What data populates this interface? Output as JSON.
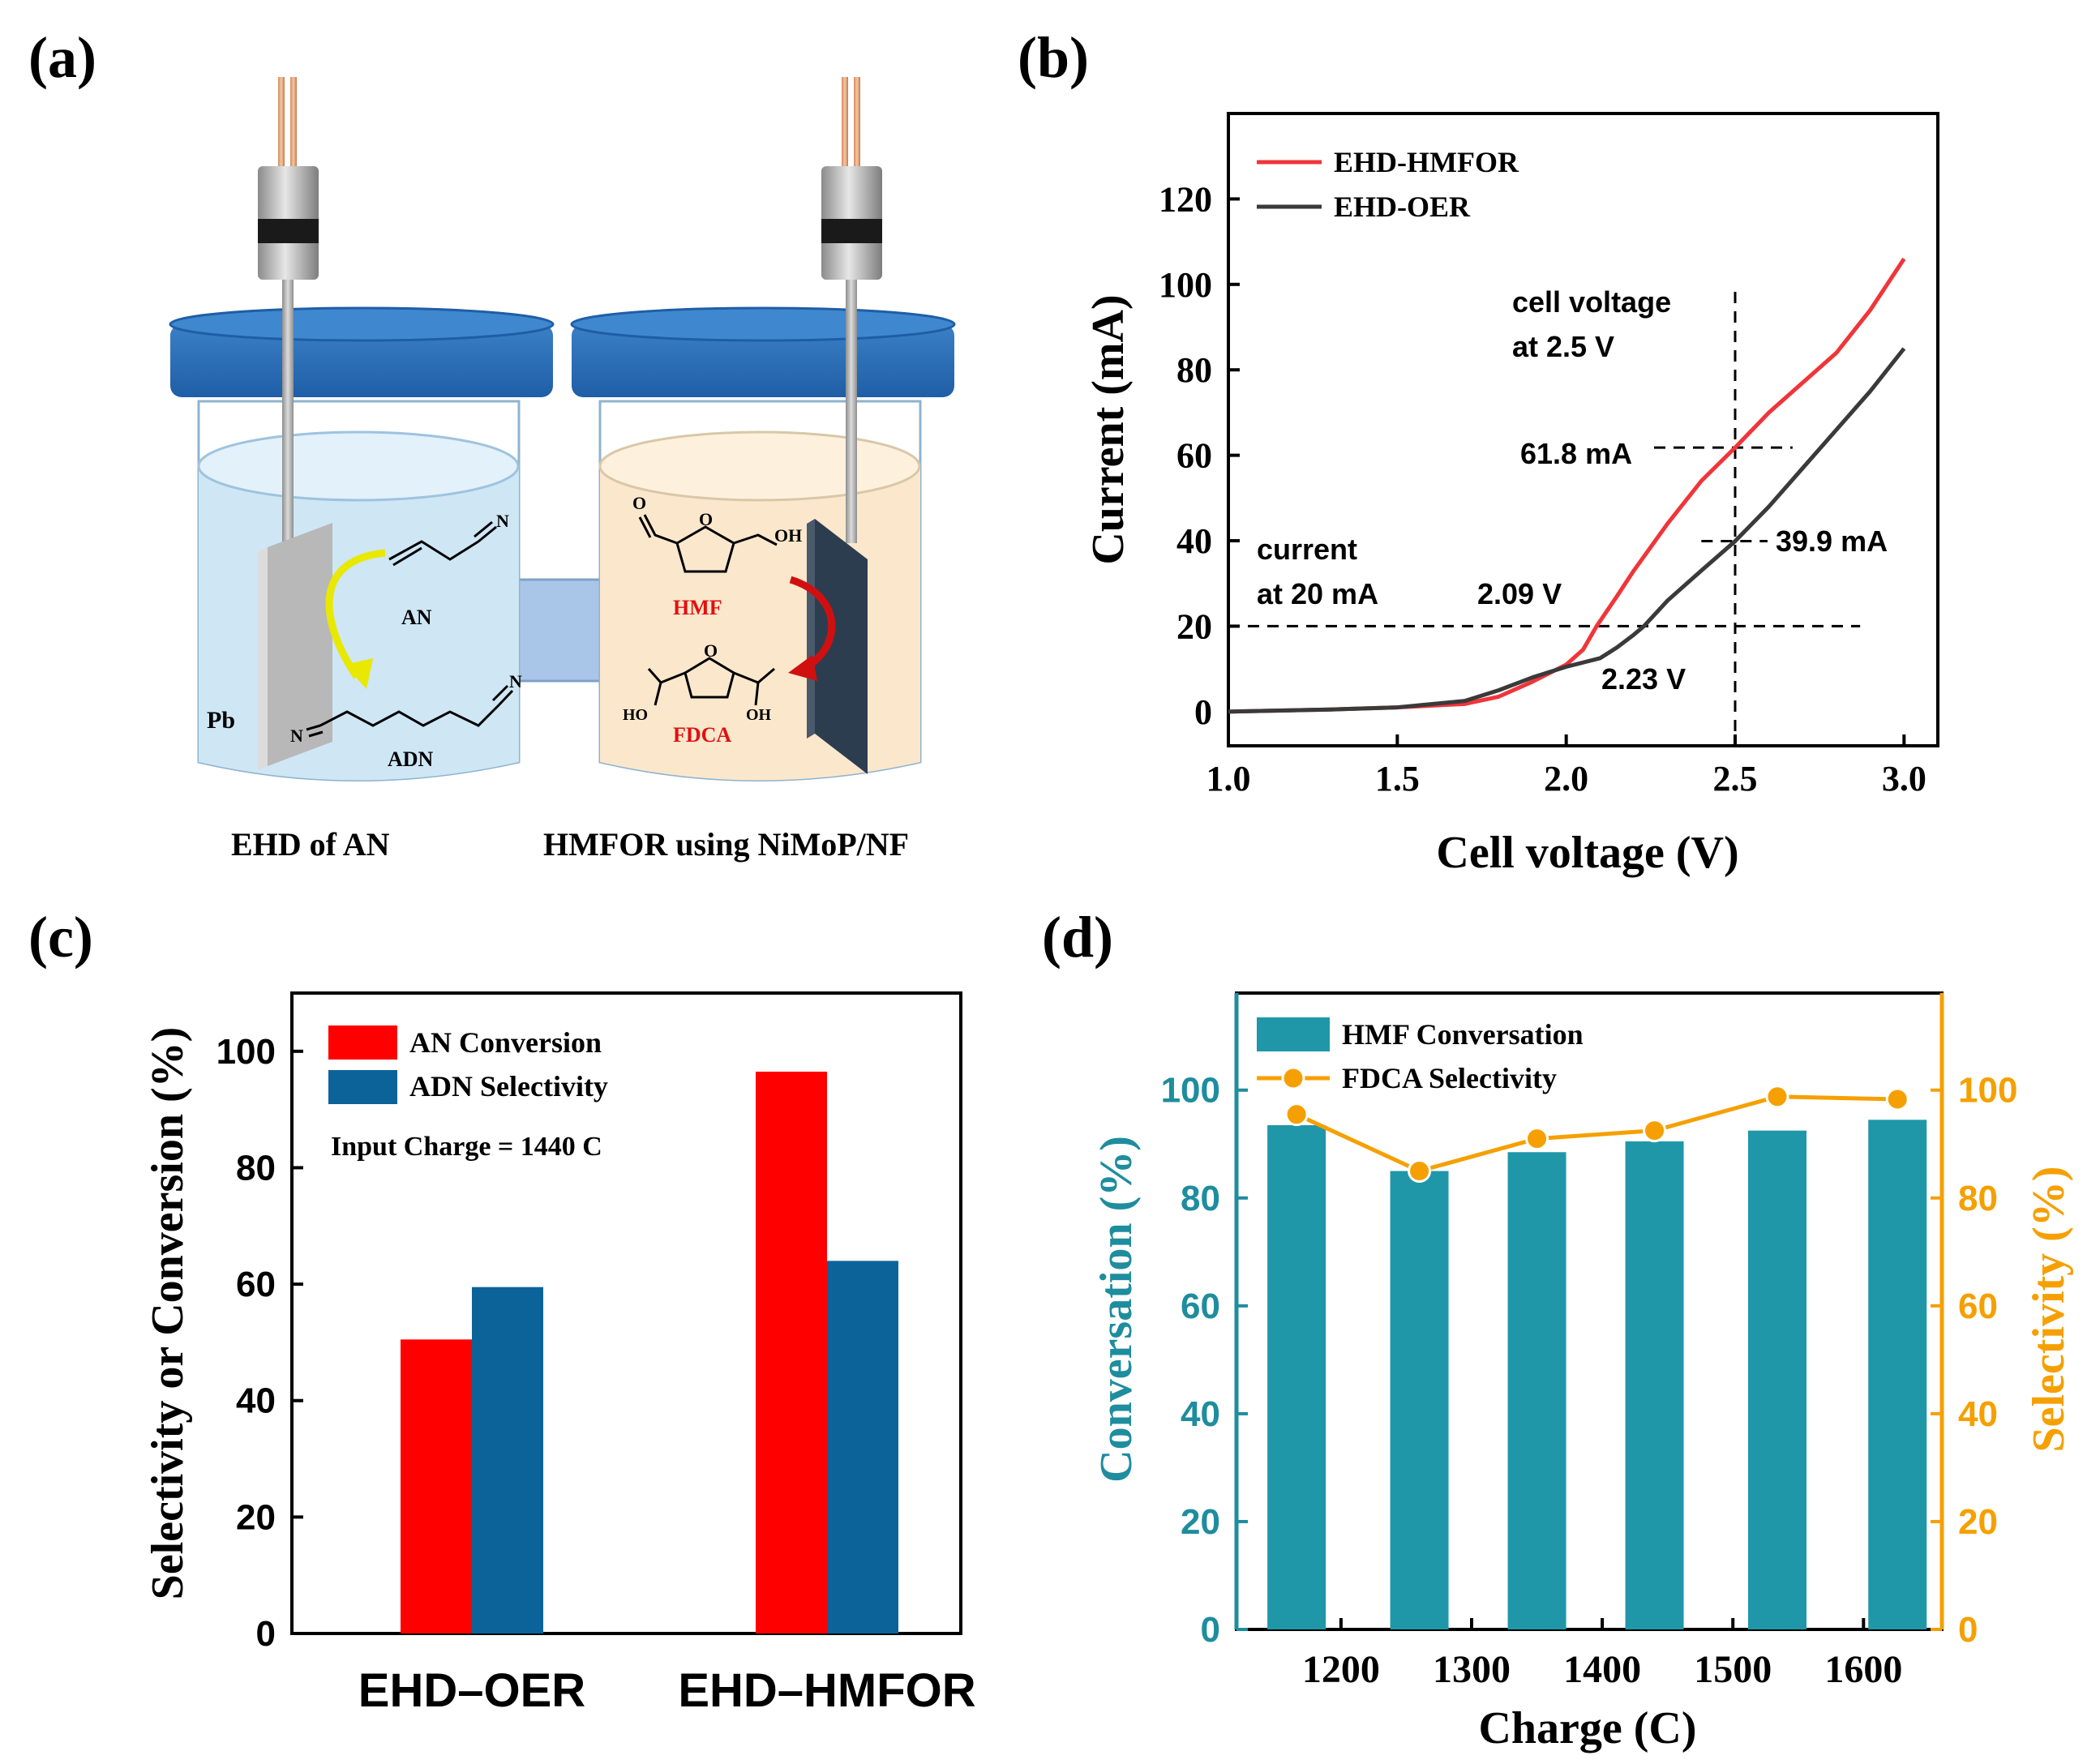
{
  "panels": {
    "a": {
      "label": "(a)",
      "left_caption": "EHD of AN",
      "right_caption": "HMFOR using NiMoP/NF",
      "electrode_label": "Pb",
      "molecules": [
        "AN",
        "ADN",
        "HMF",
        "FDCA"
      ],
      "atoms": {
        "N": "N",
        "O": "O",
        "OH": "OH",
        "HO": "HO"
      },
      "colors": {
        "cathode_liquid": "#cfe6f5",
        "anode_liquid": "#fbe8cc",
        "lid": "#2a6db5",
        "hmf_text": "#e01010",
        "arrow_left": "#e8e800",
        "arrow_right": "#d01010"
      }
    },
    "b": {
      "label": "(b)",
      "annotations": {
        "cell_voltage": "cell voltage",
        "at_25": "at 2.5 V",
        "current": "current",
        "at_20": "at 20 mA",
        "v209": "2.09 V",
        "v223": "2.23 V",
        "i618": "61.8 mA",
        "i399": "39.9 mA"
      }
    },
    "c": {
      "label": "(c)",
      "note": "Input Charge = 1440 C"
    },
    "d": {
      "label": "(d)"
    }
  },
  "chart_data": [
    {
      "id": "b",
      "type": "line",
      "xlabel": "Cell voltage (V)",
      "ylabel": "Current (mA)",
      "xlim": [
        1.0,
        3.1
      ],
      "ylim": [
        -8,
        140
      ],
      "xticks": [
        1.0,
        1.5,
        2.0,
        2.5,
        3.0
      ],
      "xtick_labels": [
        "1.0",
        "1.5",
        "2.0",
        "2.5",
        "3.0"
      ],
      "yticks": [
        0,
        20,
        40,
        60,
        80,
        100,
        120
      ],
      "ytick_labels": [
        "0",
        "20",
        "40",
        "60",
        "80",
        "100",
        "120"
      ],
      "legend": "top-left",
      "series": [
        {
          "name": "EHD-HMFOR",
          "color": "#f0353a",
          "x": [
            1.0,
            1.3,
            1.5,
            1.7,
            1.8,
            1.9,
            2.0,
            2.05,
            2.09,
            2.15,
            2.2,
            2.3,
            2.4,
            2.5,
            2.6,
            2.7,
            2.8,
            2.9,
            3.0
          ],
          "y": [
            0,
            0.5,
            1,
            1.8,
            3.5,
            7,
            11,
            14.5,
            20,
            27,
            33,
            44,
            54,
            61.8,
            70,
            77,
            84,
            94,
            106
          ]
        },
        {
          "name": "EHD-OER",
          "color": "#3a3a3a",
          "x": [
            1.0,
            1.3,
            1.5,
            1.7,
            1.8,
            1.9,
            2.0,
            2.1,
            2.15,
            2.2,
            2.23,
            2.3,
            2.4,
            2.5,
            2.6,
            2.7,
            2.8,
            2.9,
            3.0
          ],
          "y": [
            0,
            0.5,
            1,
            2.5,
            5,
            8,
            10.5,
            12.5,
            15,
            18,
            20,
            26,
            33,
            39.9,
            48,
            57,
            66,
            75,
            85
          ]
        }
      ]
    },
    {
      "id": "c",
      "type": "bar",
      "ylabel": "Selectivity or Conversion (%)",
      "ylim": [
        0,
        110
      ],
      "yticks": [
        0,
        20,
        40,
        60,
        80,
        100
      ],
      "ytick_labels": [
        "0",
        "20",
        "40",
        "60",
        "80",
        "100"
      ],
      "categories": [
        "EHD–OER",
        "EHD–HMFOR"
      ],
      "legend": "top-left",
      "series": [
        {
          "name": "AN Conversion",
          "color": "#ff0000",
          "values": [
            50.5,
            96.5
          ]
        },
        {
          "name": "ADN Selectivity",
          "color": "#0b639a",
          "values": [
            59.5,
            64.0
          ]
        }
      ]
    },
    {
      "id": "d",
      "type": "bar",
      "xlabel": "Charge (C)",
      "ylabel": "Conversation (%)",
      "y2label": "Selectivity (%)",
      "xlim": [
        1120,
        1660
      ],
      "ylim": [
        0,
        118
      ],
      "y2lim": [
        0,
        118
      ],
      "xticks": [
        1200,
        1300,
        1400,
        1500,
        1600
      ],
      "xtick_labels": [
        "1200",
        "1300",
        "1400",
        "1500",
        "1600"
      ],
      "yticks": [
        0,
        20,
        40,
        60,
        80,
        100
      ],
      "ytick_labels": [
        "0",
        "20",
        "40",
        "60",
        "80",
        "100"
      ],
      "legend": "top-left",
      "series": [
        {
          "name": "HMF Conversation",
          "kind": "bar",
          "color": "#2097a8",
          "x": [
            1166,
            1260,
            1350,
            1440,
            1534,
            1626
          ],
          "values": [
            93.5,
            85,
            88.5,
            90.5,
            92.5,
            94.5
          ]
        },
        {
          "name": "FDCA Selectivity",
          "kind": "line",
          "color": "#f5a000",
          "x": [
            1166,
            1260,
            1350,
            1440,
            1534,
            1626
          ],
          "values": [
            95.5,
            85,
            91,
            92.5,
            98.8,
            98.3
          ]
        }
      ],
      "axis_colors": {
        "left": "#1e8d9e",
        "right": "#f5a000"
      }
    }
  ]
}
